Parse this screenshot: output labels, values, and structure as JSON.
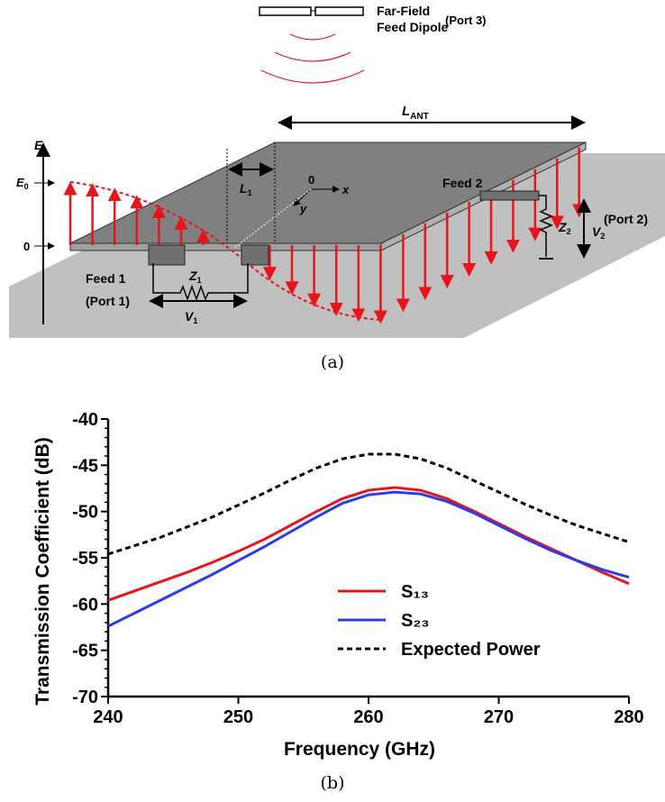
{
  "diagram": {
    "dipole_top": "Far-Field",
    "dipole_bottom": "Feed Dipole",
    "port3": "(Port 3)",
    "lant_main": "L",
    "lant_sub": "ANT",
    "e_axis": "E",
    "e0_main": "E",
    "e0_sub": "0",
    "zero": "0",
    "l1_main": "L",
    "l1_sub": "1",
    "origin": "0",
    "x_axis": "x",
    "y_axis": "y",
    "feed2": "Feed 2",
    "port2": "(Port 2)",
    "z2_main": "Z",
    "z2_sub": "2",
    "v2_main": "V",
    "v2_sub": "2",
    "feed1": "Feed 1",
    "port1": "(Port 1)",
    "z1_main": "Z",
    "z1_sub": "1",
    "v1_main": "V",
    "v1_sub": "1"
  },
  "caption_a": "(a)",
  "chart_data": {
    "type": "line",
    "x_label": "Frequency (GHz)",
    "y_label": "Transmission Coefficient (dB)",
    "x": [
      240,
      242,
      244,
      246,
      248,
      250,
      252,
      254,
      256,
      258,
      260,
      262,
      264,
      266,
      268,
      270,
      272,
      274,
      276,
      278,
      280
    ],
    "series": [
      {
        "name": "S₁₃",
        "color": "#e8141c",
        "values": [
          -59.6,
          -58.6,
          -57.6,
          -56.6,
          -55.5,
          -54.3,
          -53.0,
          -51.5,
          -50.0,
          -48.6,
          -47.7,
          -47.4,
          -47.7,
          -48.6,
          -49.9,
          -51.3,
          -52.7,
          -54.0,
          -55.3,
          -56.6,
          -57.8
        ]
      },
      {
        "name": "S₂₃",
        "color": "#2a3ee8",
        "values": [
          -62.4,
          -61.0,
          -59.6,
          -58.2,
          -56.8,
          -55.3,
          -53.8,
          -52.2,
          -50.6,
          -49.1,
          -48.2,
          -47.9,
          -48.1,
          -48.9,
          -50.1,
          -51.5,
          -52.9,
          -54.2,
          -55.3,
          -56.3,
          -57.1
        ]
      },
      {
        "name": "Expected Power",
        "color": "#000000",
        "dashed": true,
        "values": [
          -54.6,
          -53.7,
          -52.8,
          -51.7,
          -50.6,
          -49.3,
          -48.0,
          -46.6,
          -45.3,
          -44.3,
          -43.8,
          -43.8,
          -44.3,
          -45.3,
          -46.6,
          -47.9,
          -49.2,
          -50.4,
          -51.5,
          -52.4,
          -53.3
        ]
      }
    ],
    "xlim": [
      240,
      280
    ],
    "xticks": [
      240,
      250,
      260,
      270,
      280
    ],
    "ylim": [
      -70,
      -40
    ],
    "yticks": [
      -70,
      -65,
      -60,
      -55,
      -50,
      -45,
      -40
    ]
  },
  "caption_b": "(b)"
}
